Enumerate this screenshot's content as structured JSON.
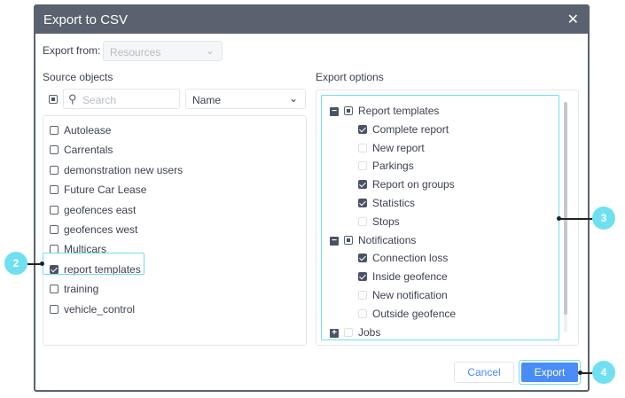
{
  "dialog": {
    "title": "Export to CSV",
    "close_icon": "close-icon"
  },
  "export_from": {
    "label": "Export from:",
    "value": "Resources"
  },
  "source": {
    "heading": "Source objects",
    "search_placeholder": "Search",
    "sort_value": "Name",
    "items": [
      {
        "label": "Autolease",
        "checked": false
      },
      {
        "label": "Carrentals",
        "checked": false
      },
      {
        "label": "demonstration new users",
        "checked": false
      },
      {
        "label": "Future Car Lease",
        "checked": false
      },
      {
        "label": "geofences east",
        "checked": false
      },
      {
        "label": "geofences west",
        "checked": false
      },
      {
        "label": "Multicars",
        "checked": false
      },
      {
        "label": "report templates",
        "checked": true
      },
      {
        "label": "training",
        "checked": false
      },
      {
        "label": "vehicle_control",
        "checked": false
      }
    ]
  },
  "options": {
    "heading": "Export options",
    "tree": [
      {
        "label": "Report templates",
        "level": 0,
        "toggle": "minus",
        "state": "partial"
      },
      {
        "label": "Complete report",
        "level": 1,
        "state": "checked"
      },
      {
        "label": "New report",
        "level": 1,
        "state": "unchecked"
      },
      {
        "label": "Parkings",
        "level": 1,
        "state": "unchecked"
      },
      {
        "label": "Report on groups",
        "level": 1,
        "state": "checked"
      },
      {
        "label": "Statistics",
        "level": 1,
        "state": "checked"
      },
      {
        "label": "Stops",
        "level": 1,
        "state": "unchecked"
      },
      {
        "label": "Notifications",
        "level": 0,
        "toggle": "minus",
        "state": "partial"
      },
      {
        "label": "Connection loss",
        "level": 1,
        "state": "checked"
      },
      {
        "label": "Inside geofence",
        "level": 1,
        "state": "checked"
      },
      {
        "label": "New notification",
        "level": 1,
        "state": "unchecked"
      },
      {
        "label": "Outside geofence",
        "level": 1,
        "state": "unchecked"
      },
      {
        "label": "Jobs",
        "level": 0,
        "toggle": "plus",
        "state": "unchecked"
      }
    ]
  },
  "buttons": {
    "cancel": "Cancel",
    "export": "Export"
  },
  "callouts": [
    "2",
    "3",
    "4"
  ],
  "colors": {
    "header": "#5a6270",
    "accent": "#4a8cf7",
    "highlight": "#6fe0ef"
  }
}
